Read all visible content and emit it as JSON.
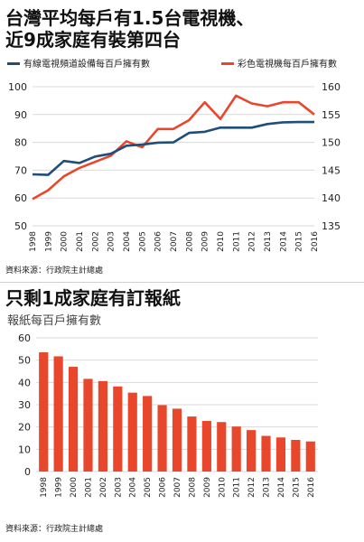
{
  "top_chart": {
    "title_line1": "台灣平均每戶有1.5台電視機、",
    "title_line2": "近9成家庭有裝第四台",
    "source": "資料來源：行政院主計總處",
    "legend_left": "有線電視頻道設備每百戶擁有數",
    "legend_right": "彩色電視機每百戶擁有數",
    "colors": {
      "cable": "#1f4e79",
      "tv": "#e8472b",
      "grid": "#d9d9d9"
    }
  },
  "bottom_chart": {
    "title": "只剩1成家庭有訂報紙",
    "subtitle": "報紙每百戶擁有數",
    "source": "資料來源：行政院主計總處",
    "colors": {
      "bar": "#e8472b",
      "grid": "#d9d9d9"
    }
  },
  "chart_data": [
    {
      "type": "line",
      "x": [
        "1998",
        "1999",
        "2000",
        "2001",
        "2002",
        "2003",
        "2004",
        "2005",
        "2006",
        "2007",
        "2008",
        "2009",
        "2010",
        "2011",
        "2012",
        "2013",
        "2014",
        "2015",
        "2016"
      ],
      "series": [
        {
          "name": "有線電視頻道設備每百戶擁有數",
          "axis": "left",
          "values": [
            68.5,
            68.3,
            73.3,
            72.6,
            74.9,
            75.9,
            78.8,
            79.2,
            79.9,
            80.0,
            83.4,
            83.8,
            85.3,
            85.3,
            85.3,
            86.6,
            87.2,
            87.3,
            87.3
          ]
        },
        {
          "name": "彩色電視機每百戶擁有數",
          "axis": "right",
          "values": [
            139.8,
            141.4,
            143.9,
            145.4,
            146.5,
            147.6,
            150.2,
            149.1,
            152.4,
            152.4,
            154.0,
            157.2,
            154.2,
            158.4,
            157.0,
            156.5,
            157.2,
            157.2,
            155.0
          ]
        }
      ],
      "yleft_ticks": [
        "50",
        "60",
        "70",
        "80",
        "90",
        "100"
      ],
      "yright_ticks": [
        "135",
        "140",
        "145",
        "150",
        "155",
        "160"
      ],
      "ylim_left": [
        50,
        100
      ],
      "ylim_right": [
        135,
        160
      ],
      "grid": true,
      "legend": "top"
    },
    {
      "type": "bar",
      "categories": [
        "1998",
        "1999",
        "2000",
        "2001",
        "2002",
        "2003",
        "2004",
        "2005",
        "2006",
        "2007",
        "2008",
        "2009",
        "2010",
        "2011",
        "2012",
        "2013",
        "2014",
        "2015",
        "2016"
      ],
      "values": [
        53.5,
        51.7,
        47.0,
        41.6,
        40.6,
        38.2,
        35.4,
        33.9,
        29.8,
        28.2,
        24.7,
        22.7,
        22.2,
        20.2,
        18.6,
        16.0,
        15.3,
        14.2,
        13.5
      ],
      "y_ticks": [
        "0",
        "10",
        "20",
        "30",
        "40",
        "50",
        "60"
      ],
      "ylim": [
        0,
        60
      ],
      "grid": true
    }
  ]
}
